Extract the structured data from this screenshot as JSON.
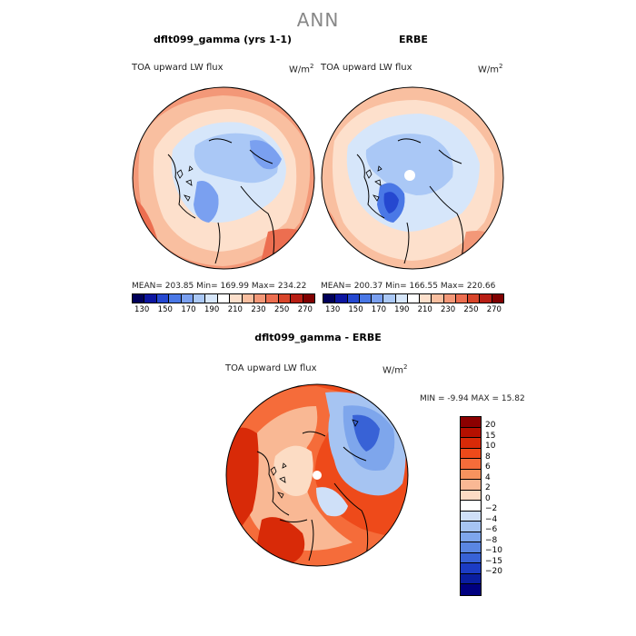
{
  "figure": {
    "title": "ANN"
  },
  "panels": [
    {
      "title": "dflt099_gamma (yrs 1-1)",
      "variable": "TOA upward LW flux",
      "units": "W/m",
      "units_exp": "2",
      "stats_text": "MEAN= 203.85   Min= 169.99   Max= 234.22",
      "mean": 203.85,
      "min": 169.99,
      "max": 234.22
    },
    {
      "title": "ERBE",
      "variable": "TOA upward LW flux",
      "units": "W/m",
      "units_exp": "2",
      "stats_text": "MEAN= 200.37   Min= 166.55   Max= 220.66",
      "mean": 200.37,
      "min": 166.55,
      "max": 220.66
    },
    {
      "title": "dflt099_gamma - ERBE",
      "variable": "TOA upward LW flux",
      "units": "W/m",
      "units_exp": "2",
      "stats_text": "MIN =   -9.94  MAX =   15.82",
      "min": -9.94,
      "max": 15.82
    }
  ],
  "colorbar_abs": {
    "labels": [
      "130",
      "150",
      "170",
      "190",
      "210",
      "230",
      "250",
      "270"
    ],
    "colors": [
      "#00005a",
      "#0c16a0",
      "#2548d0",
      "#4a78e6",
      "#7aa0f0",
      "#aac8f6",
      "#d6e6fa",
      "#ffffff",
      "#fde0cc",
      "#f9bfa0",
      "#f39878",
      "#ec6e50",
      "#d8452a",
      "#b81e14",
      "#800000"
    ]
  },
  "colorbar_diff": {
    "labels": [
      "20",
      "15",
      "10",
      "8",
      "6",
      "4",
      "2",
      "0",
      "−2",
      "−4",
      "−6",
      "−8",
      "−10",
      "−15",
      "−20"
    ],
    "colors": [
      "#8c0000",
      "#b51000",
      "#d82a08",
      "#ee4a1a",
      "#f56c3a",
      "#f7935e",
      "#f9b894",
      "#fcdcc4",
      "#ffffff",
      "#cfe0f8",
      "#a6c4f2",
      "#7ea6ec",
      "#5a86e2",
      "#3862d6",
      "#1c3cc4",
      "#0a1ea0",
      "#000080"
    ]
  }
}
